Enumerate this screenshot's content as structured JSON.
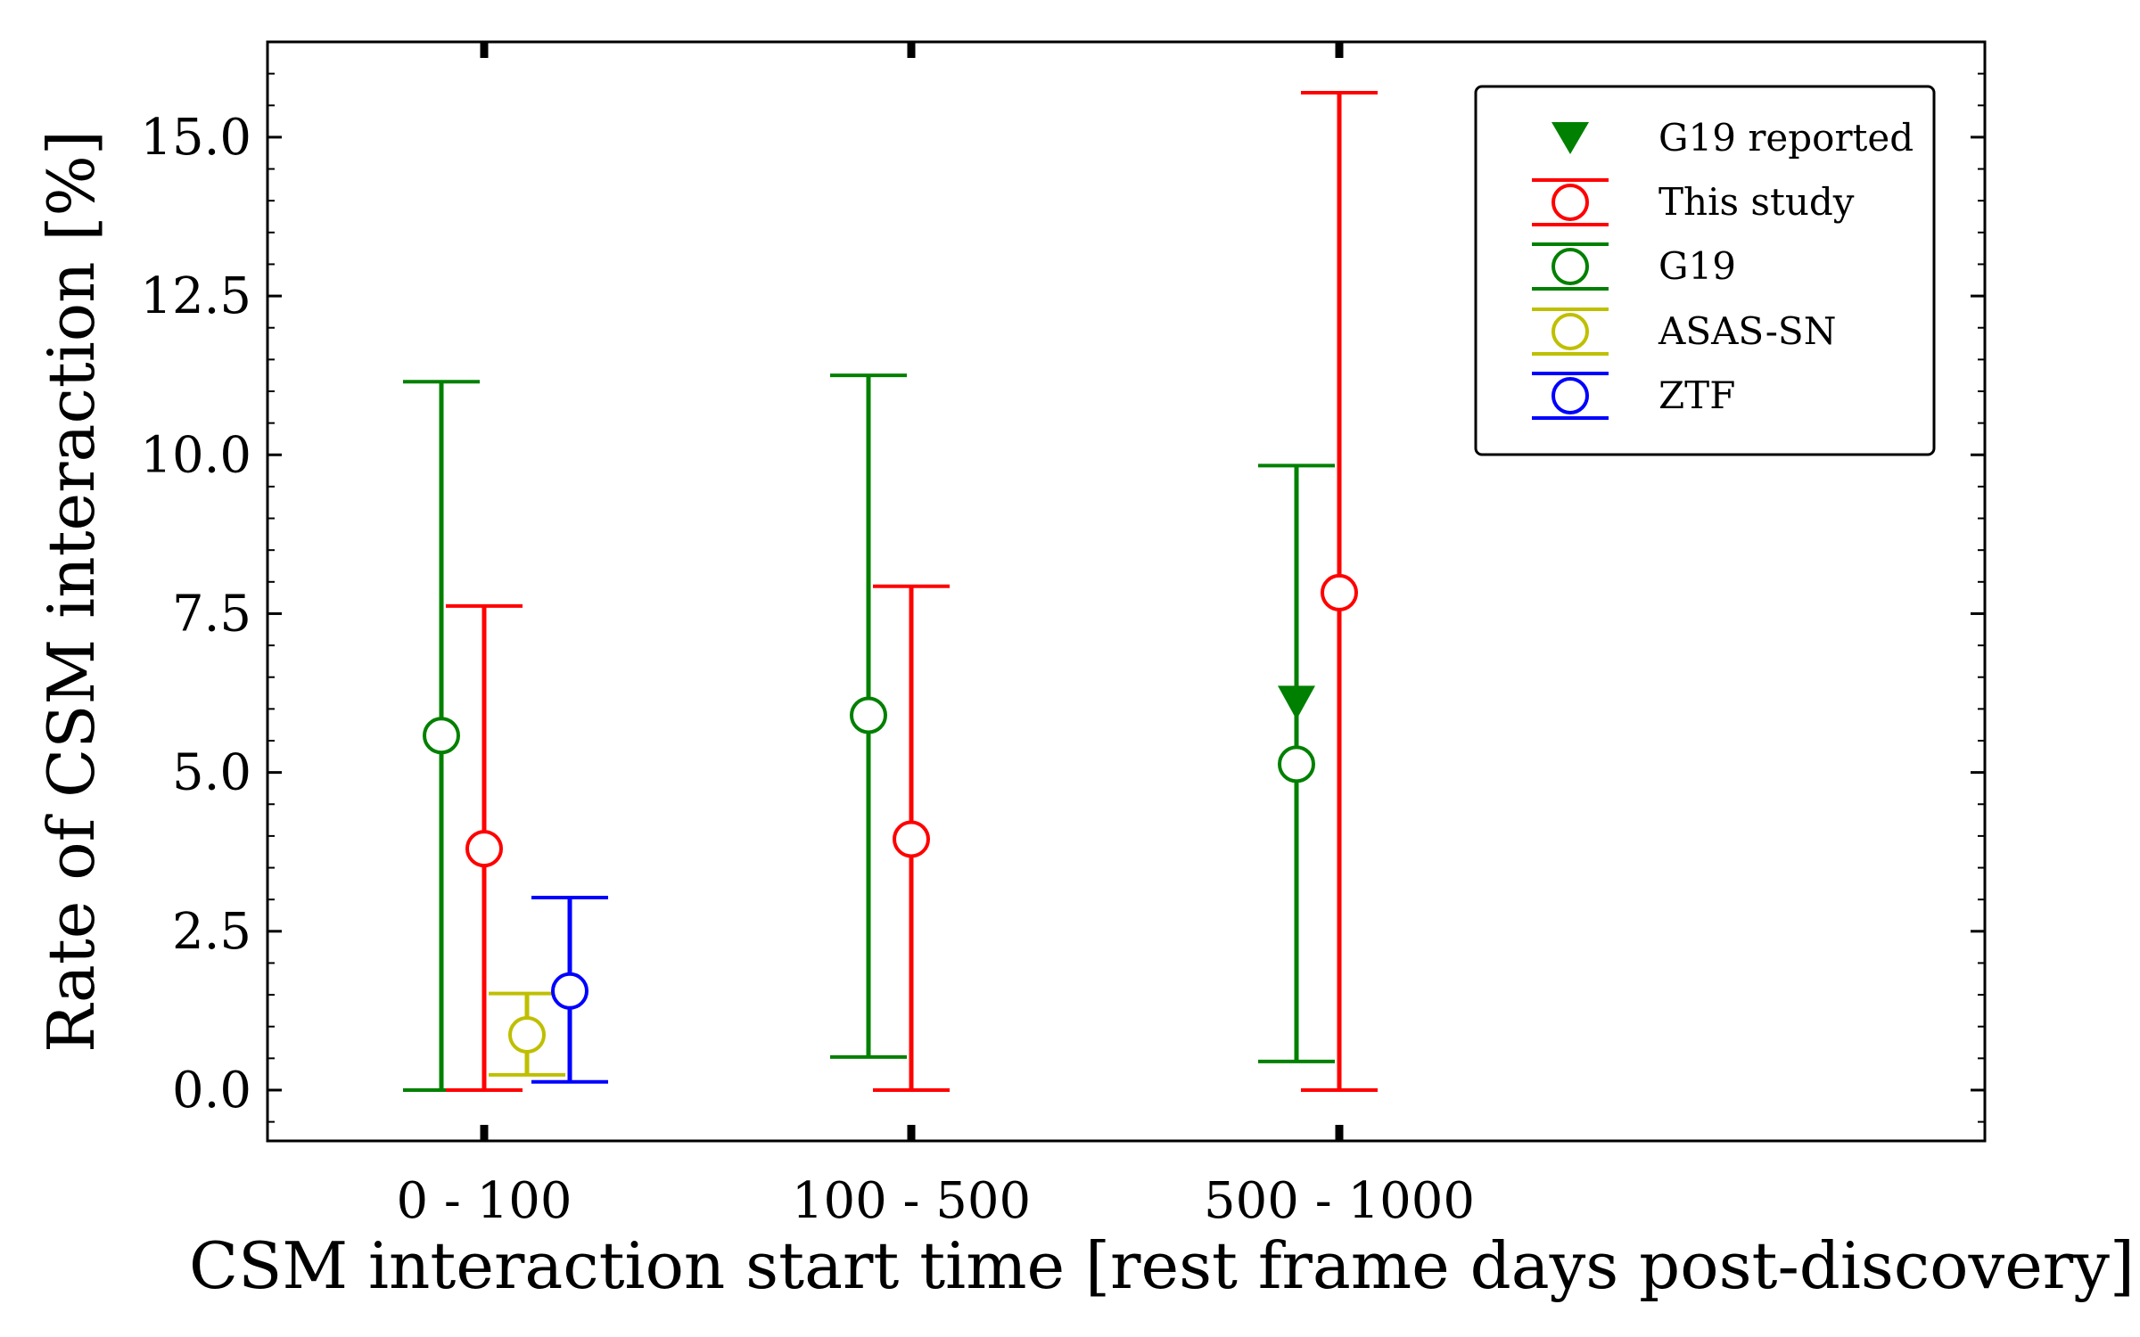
{
  "chart_data": {
    "type": "scatter",
    "title": "",
    "xlabel": "CSM interaction start time [rest frame days post-discovery]",
    "ylabel": "Rate of CSM interaction [%]",
    "categories": [
      "0 - 100",
      "100 - 500",
      "500 - 1000"
    ],
    "ylim": [
      -0.8,
      16.5
    ],
    "yticks": [
      "0.0",
      "2.5",
      "5.0",
      "7.5",
      "10.0",
      "12.5",
      "15.0"
    ],
    "grid": false,
    "legend_position": "top-right",
    "series": [
      {
        "name": "This study",
        "color": "#ff0000",
        "marker": "open-circle",
        "points": [
          {
            "category": "0 - 100",
            "y": 3.8,
            "y_low": 0.0,
            "y_high": 7.62
          },
          {
            "category": "100 - 500",
            "y": 3.95,
            "y_low": 0.0,
            "y_high": 7.93
          },
          {
            "category": "500 - 1000",
            "y": 7.83,
            "y_low": 0.0,
            "y_high": 15.7
          }
        ]
      },
      {
        "name": "G19",
        "color": "#008000",
        "marker": "open-circle",
        "points": [
          {
            "category": "0 - 100",
            "y": 5.58,
            "y_low": 0.0,
            "y_high": 11.15
          },
          {
            "category": "100 - 500",
            "y": 5.9,
            "y_low": 0.52,
            "y_high": 11.25
          },
          {
            "category": "500 - 1000",
            "y": 5.13,
            "y_low": 0.45,
            "y_high": 9.83
          }
        ]
      },
      {
        "name": "ASAS-SN",
        "color": "#bfbf00",
        "marker": "open-circle",
        "points": [
          {
            "category": "0 - 100",
            "y": 0.87,
            "y_low": 0.24,
            "y_high": 1.52
          }
        ]
      },
      {
        "name": "ZTF",
        "color": "#0000ff",
        "marker": "open-circle",
        "points": [
          {
            "category": "0 - 100",
            "y": 1.56,
            "y_low": 0.13,
            "y_high": 3.03
          }
        ]
      },
      {
        "name": "G19 reported",
        "color": "#008000",
        "marker": "filled-triangle-down",
        "points": [
          {
            "category": "500 - 1000",
            "y": 6.0
          }
        ]
      }
    ],
    "legend": [
      "G19 reported",
      "This study",
      "G19",
      "ASAS-SN",
      "ZTF"
    ]
  }
}
